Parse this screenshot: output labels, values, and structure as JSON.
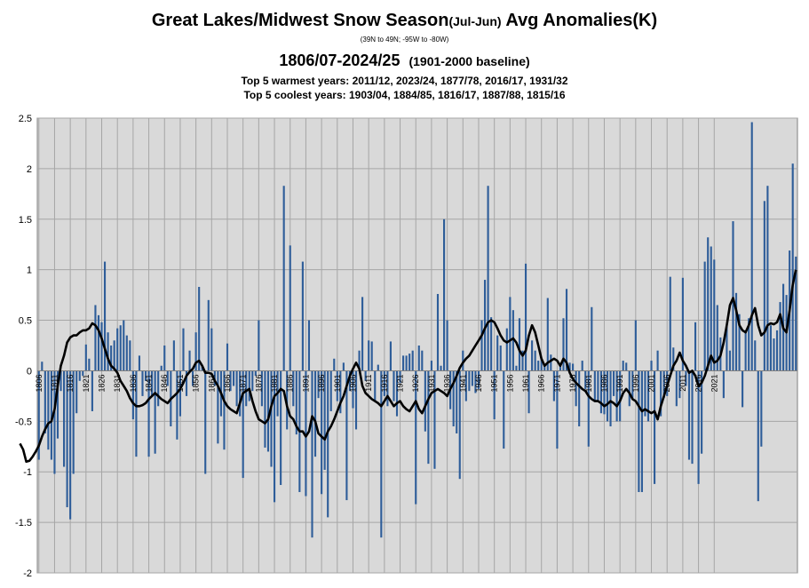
{
  "chart_data": {
    "type": "bar",
    "title_main": "Great Lakes/Midwest Snow Season",
    "title_paren": "(Jul-Jun)",
    "title_end": " Avg Anomalies(K)",
    "region": "(39N to 49N; -95W to -80W)",
    "period": "1806/07-2024/25",
    "baseline": "(1901-2000 baseline)",
    "warmest_label": "Top 5 warmest years:",
    "warmest": "2011/12, 2023/24, 1877/78, 2016/17, 1931/32",
    "coolest_label": "Top 5 coolest years:",
    "coolest": "1903/04, 1884/85, 1816/17, 1887/88, 1815/16",
    "ylim": [
      -2,
      2.5
    ],
    "yticks": [
      "2.5",
      "2",
      "1.5",
      "1",
      "0.5",
      "0",
      "-0.5",
      "-1",
      "-1.5",
      "-2"
    ],
    "xticks": [
      "1806",
      "1811",
      "1816",
      "1821",
      "1826",
      "1831",
      "1836",
      "1841",
      "1846",
      "1851",
      "1856",
      "1861",
      "1866",
      "1871",
      "1876",
      "1881",
      "1886",
      "1891",
      "1896",
      "1901",
      "1906",
      "1911",
      "1916",
      "1921",
      "1926",
      "1931",
      "1936",
      "1941",
      "1946",
      "1951",
      "1956",
      "1961",
      "1966",
      "1971",
      "1976",
      "1981",
      "1986",
      "1991",
      "1996",
      "2001",
      "2006",
      "2011",
      "2016",
      "2021"
    ],
    "start_year": 1806,
    "bar_color": "#2e5d99",
    "line_color": "#000000",
    "plot_bg": "#d9d9d9",
    "grid": true,
    "values": [
      -0.88,
      0.09,
      -0.62,
      -0.78,
      -0.88,
      -1.02,
      -0.67,
      -0.2,
      -0.95,
      -1.35,
      -1.47,
      -1.02,
      -0.42,
      -0.1,
      -0.05,
      0.26,
      0.12,
      -0.4,
      0.65,
      0.55,
      0.48,
      1.08,
      0.38,
      0.25,
      0.3,
      0.42,
      0.45,
      0.5,
      0.35,
      0.3,
      -0.48,
      -0.85,
      0.15,
      -0.25,
      -0.1,
      -0.85,
      -0.25,
      -0.82,
      -0.35,
      0.05,
      0.25,
      -0.15,
      -0.55,
      0.3,
      -0.68,
      -0.45,
      0.42,
      -0.25,
      0.2,
      -0.15,
      0.38,
      0.83,
      0.05,
      -1.02,
      0.7,
      0.42,
      -0.15,
      -0.72,
      -0.45,
      -0.78,
      0.27,
      -0.2,
      -0.15,
      -0.35,
      -0.45,
      -1.06,
      -0.35,
      -0.3,
      -0.2,
      -0.05,
      0.5,
      -0.35,
      -0.76,
      -0.8,
      -0.95,
      -1.3,
      -0.45,
      -1.13,
      1.83,
      -0.58,
      1.24,
      -0.35,
      -0.63,
      -1.2,
      1.08,
      -1.24,
      0.5,
      -1.65,
      -0.85,
      -0.27,
      -1.22,
      -0.98,
      -1.45,
      -0.4,
      0.12,
      -0.3,
      -0.42,
      0.08,
      -1.28,
      -0.2,
      -0.37,
      -0.58,
      0.2,
      0.73,
      -0.1,
      0.3,
      0.29,
      -0.3,
      0.06,
      -1.65,
      -0.25,
      -0.35,
      0.29,
      -0.3,
      -0.45,
      -0.12,
      0.15,
      0.15,
      0.17,
      0.2,
      -1.32,
      0.25,
      0.2,
      -0.6,
      -0.92,
      0.1,
      -0.97,
      0.76,
      0.05,
      1.5,
      0.5,
      -0.38,
      -0.55,
      -0.62,
      -1.07,
      0.2,
      -0.3,
      -0.2,
      -0.15,
      -0.22,
      -0.18,
      0.5,
      0.9,
      1.83,
      0.53,
      -0.48,
      0.35,
      0.25,
      -0.77,
      0.42,
      0.73,
      0.6,
      0.05,
      0.52,
      0.2,
      1.06,
      -0.42,
      0.3,
      0.2,
      0.1,
      0.12,
      0.05,
      0.72,
      0.16,
      -0.3,
      -0.77,
      0.05,
      0.52,
      0.81,
      0.08,
      0.07,
      -0.35,
      -0.55,
      0.1,
      -0.18,
      -0.75,
      0.63,
      -0.3,
      -0.3,
      -0.42,
      -0.43,
      -0.5,
      -0.55,
      -0.25,
      -0.5,
      -0.5,
      0.1,
      0.08,
      -0.35,
      -0.28,
      0.5,
      -1.2,
      -1.2,
      -0.45,
      -0.5,
      0.1,
      -1.12,
      0.2,
      -0.45,
      -0.27,
      -0.25,
      0.93,
      0.23,
      -0.35,
      -0.27,
      0.92,
      -0.15,
      -0.88,
      -0.92,
      0.48,
      -1.12,
      -0.82,
      1.08,
      1.32,
      1.23,
      1.1,
      0.65,
      0.33,
      -0.27,
      0.45,
      0.2,
      1.48,
      0.77,
      0.56,
      -0.36,
      0.4,
      0.52,
      2.46,
      0.3,
      -1.29,
      -0.75,
      1.68,
      1.83,
      0.45,
      0.32,
      0.4,
      0.68,
      0.86,
      0.75,
      1.19,
      2.05,
      1.13
    ],
    "smooth": [
      -0.72,
      -0.78,
      -0.9,
      -0.89,
      -0.85,
      -0.8,
      -0.74,
      -0.65,
      -0.58,
      -0.52,
      -0.5,
      -0.38,
      -0.15,
      0.05,
      0.15,
      0.28,
      0.33,
      0.35,
      0.35,
      0.38,
      0.4,
      0.4,
      0.42,
      0.47,
      0.45,
      0.4,
      0.32,
      0.22,
      0.12,
      0.05,
      0.02,
      -0.02,
      -0.1,
      -0.15,
      -0.2,
      -0.27,
      -0.32,
      -0.35,
      -0.35,
      -0.34,
      -0.32,
      -0.28,
      -0.25,
      -0.22,
      -0.25,
      -0.28,
      -0.3,
      -0.32,
      -0.28,
      -0.25,
      -0.22,
      -0.18,
      -0.12,
      -0.05,
      -0.01,
      0.02,
      0.08,
      0.1,
      0.05,
      -0.02,
      -0.02,
      -0.03,
      -0.1,
      -0.15,
      -0.22,
      -0.3,
      -0.35,
      -0.38,
      -0.4,
      -0.42,
      -0.32,
      -0.22,
      -0.2,
      -0.18,
      -0.3,
      -0.4,
      -0.48,
      -0.5,
      -0.52,
      -0.48,
      -0.35,
      -0.25,
      -0.22,
      -0.18,
      -0.2,
      -0.35,
      -0.45,
      -0.48,
      -0.55,
      -0.6,
      -0.6,
      -0.65,
      -0.6,
      -0.45,
      -0.5,
      -0.62,
      -0.65,
      -0.68,
      -0.6,
      -0.55,
      -0.48,
      -0.4,
      -0.32,
      -0.25,
      -0.15,
      -0.05,
      0.02,
      0.08,
      0.02,
      -0.15,
      -0.22,
      -0.25,
      -0.28,
      -0.3,
      -0.32,
      -0.35,
      -0.3,
      -0.25,
      -0.3,
      -0.35,
      -0.32,
      -0.3,
      -0.35,
      -0.38,
      -0.4,
      -0.35,
      -0.3,
      -0.38,
      -0.42,
      -0.35,
      -0.28,
      -0.22,
      -0.2,
      -0.18,
      -0.2,
      -0.22,
      -0.25,
      -0.18,
      -0.12,
      -0.05,
      0.03,
      0.08,
      0.12,
      0.15,
      0.2,
      0.25,
      0.3,
      0.35,
      0.42,
      0.48,
      0.5,
      0.48,
      0.42,
      0.35,
      0.3,
      0.28,
      0.3,
      0.32,
      0.28,
      0.2,
      0.15,
      0.2,
      0.35,
      0.45,
      0.38,
      0.25,
      0.12,
      0.05,
      0.08,
      0.1,
      0.12,
      0.1,
      0.05,
      0.12,
      0.08,
      -0.02,
      -0.08,
      -0.12,
      -0.15,
      -0.18,
      -0.2,
      -0.25,
      -0.28,
      -0.3,
      -0.3,
      -0.32,
      -0.35,
      -0.33,
      -0.3,
      -0.32,
      -0.35,
      -0.3,
      -0.22,
      -0.18,
      -0.22,
      -0.28,
      -0.3,
      -0.35,
      -0.4,
      -0.38,
      -0.4,
      -0.42,
      -0.4,
      -0.48,
      -0.35,
      -0.25,
      -0.15,
      -0.05,
      0.05,
      0.1,
      0.18,
      0.1,
      0.05,
      -0.02,
      0.0,
      -0.05,
      -0.15,
      -0.12,
      -0.05,
      0.05,
      0.15,
      0.08,
      0.1,
      0.15,
      0.28,
      0.45,
      0.65,
      0.72,
      0.6,
      0.45,
      0.4,
      0.38,
      0.45,
      0.55,
      0.62,
      0.45,
      0.35,
      0.38,
      0.45,
      0.47,
      0.46,
      0.48,
      0.56,
      0.42,
      0.38,
      0.6,
      0.85,
      1.0
    ]
  }
}
